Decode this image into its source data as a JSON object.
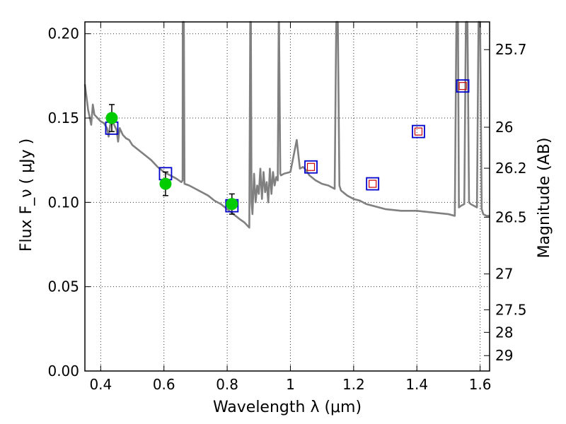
{
  "chart_data": {
    "type": "scatter",
    "title": "",
    "xlabel": "Wavelength  λ (μm)",
    "ylabel": "Flux  F_ν  ( μJy )",
    "y2label": "Magnitude (AB)",
    "xlim": [
      0.35,
      1.63
    ],
    "ylim": [
      0.0,
      0.207
    ],
    "x_ticks": [
      {
        "value": 0.4,
        "label": "0.4"
      },
      {
        "value": 0.6,
        "label": "0.6"
      },
      {
        "value": 0.8,
        "label": "0.8"
      },
      {
        "value": 1.0,
        "label": "1"
      },
      {
        "value": 1.2,
        "label": "1.2"
      },
      {
        "value": 1.4,
        "label": "1.4"
      },
      {
        "value": 1.6,
        "label": "1.6"
      }
    ],
    "y_ticks": [
      {
        "value": 0.0,
        "label": "0.00"
      },
      {
        "value": 0.05,
        "label": "0.05"
      },
      {
        "value": 0.1,
        "label": "0.10"
      },
      {
        "value": 0.15,
        "label": "0.15"
      },
      {
        "value": 0.2,
        "label": "0.20"
      }
    ],
    "y2_ticks": [
      {
        "value": 25.7,
        "label": "25.7"
      },
      {
        "value": 26,
        "label": "26"
      },
      {
        "value": 26.2,
        "label": "26.2"
      },
      {
        "value": 26.5,
        "label": "26.5"
      },
      {
        "value": 27,
        "label": "27"
      },
      {
        "value": 27.5,
        "label": "27.5"
      },
      {
        "value": 28,
        "label": "28"
      },
      {
        "value": 29,
        "label": "29"
      }
    ],
    "grid": true,
    "colors": {
      "model": "#808080",
      "observed": "#00cc00",
      "model_blue": "#0000cc",
      "model_red": "#cc0000",
      "errorbar": "#000000"
    },
    "series": [
      {
        "kind": "line",
        "x": [
          0.35,
          0.36,
          0.37,
          0.375,
          0.38,
          0.39,
          0.4,
          0.41,
          0.42,
          0.425,
          0.43,
          0.44,
          0.45,
          0.455,
          0.46,
          0.47,
          0.48,
          0.49,
          0.5,
          0.52,
          0.54,
          0.56,
          0.58,
          0.6,
          0.62,
          0.64,
          0.655,
          0.659,
          0.6595,
          0.663,
          0.665,
          0.68,
          0.7,
          0.72,
          0.74,
          0.76,
          0.78,
          0.8,
          0.82,
          0.84,
          0.855,
          0.865,
          0.87,
          0.873,
          0.875,
          0.877,
          0.88,
          0.885,
          0.89,
          0.895,
          0.9,
          0.905,
          0.91,
          0.915,
          0.92,
          0.925,
          0.93,
          0.935,
          0.94,
          0.945,
          0.95,
          0.955,
          0.96,
          0.963,
          0.964,
          0.968,
          0.97,
          0.98,
          1.0,
          1.02,
          1.03,
          1.04,
          1.05,
          1.06,
          1.08,
          1.1,
          1.12,
          1.14,
          1.145,
          1.15,
          1.155,
          1.16,
          1.18,
          1.2,
          1.22,
          1.24,
          1.26,
          1.28,
          1.3,
          1.35,
          1.4,
          1.45,
          1.5,
          1.52,
          1.525,
          1.53,
          1.53,
          1.533,
          1.54,
          1.55,
          1.555,
          1.56,
          1.565,
          1.57,
          1.58,
          1.59,
          1.595,
          1.6,
          1.605,
          1.61,
          1.62,
          1.63
        ],
        "y": [
          0.17,
          0.155,
          0.146,
          0.158,
          0.152,
          0.15,
          0.148,
          0.147,
          0.144,
          0.139,
          0.146,
          0.147,
          0.143,
          0.136,
          0.144,
          0.14,
          0.138,
          0.137,
          0.134,
          0.131,
          0.128,
          0.125,
          0.121,
          0.118,
          0.116,
          0.114,
          0.112,
          0.113,
          0.207,
          0.207,
          0.111,
          0.11,
          0.108,
          0.106,
          0.104,
          0.101,
          0.099,
          0.096,
          0.093,
          0.09,
          0.088,
          0.086,
          0.085,
          0.207,
          0.207,
          0.1,
          0.093,
          0.117,
          0.1,
          0.11,
          0.105,
          0.12,
          0.102,
          0.118,
          0.106,
          0.112,
          0.1,
          0.12,
          0.105,
          0.118,
          0.11,
          0.115,
          0.113,
          0.207,
          0.207,
          0.117,
          0.116,
          0.117,
          0.118,
          0.137,
          0.12,
          0.121,
          0.119,
          0.116,
          0.113,
          0.111,
          0.11,
          0.108,
          0.207,
          0.207,
          0.11,
          0.107,
          0.104,
          0.102,
          0.101,
          0.099,
          0.098,
          0.097,
          0.096,
          0.095,
          0.095,
          0.094,
          0.093,
          0.092,
          0.207,
          0.207,
          0.207,
          0.097,
          0.098,
          0.099,
          0.207,
          0.207,
          0.1,
          0.099,
          0.098,
          0.097,
          0.207,
          0.207,
          0.096,
          0.093,
          0.092,
          0.092
        ]
      },
      {
        "kind": "points",
        "marker": "circle",
        "x": [
          0.435,
          0.605,
          0.815
        ],
        "y": [
          0.15,
          0.111,
          0.099
        ],
        "err": [
          0.008,
          0.007,
          0.006
        ]
      },
      {
        "kind": "points",
        "marker": "square-blue",
        "x": [
          0.435,
          0.605,
          0.815,
          1.065,
          1.26,
          1.405,
          1.545
        ],
        "y": [
          0.144,
          0.117,
          0.098,
          0.121,
          0.111,
          0.142,
          0.169
        ]
      },
      {
        "kind": "points",
        "marker": "square-red",
        "x": [
          1.065,
          1.26,
          1.405,
          1.545
        ],
        "y": [
          0.121,
          0.111,
          0.142,
          0.169
        ]
      }
    ]
  }
}
